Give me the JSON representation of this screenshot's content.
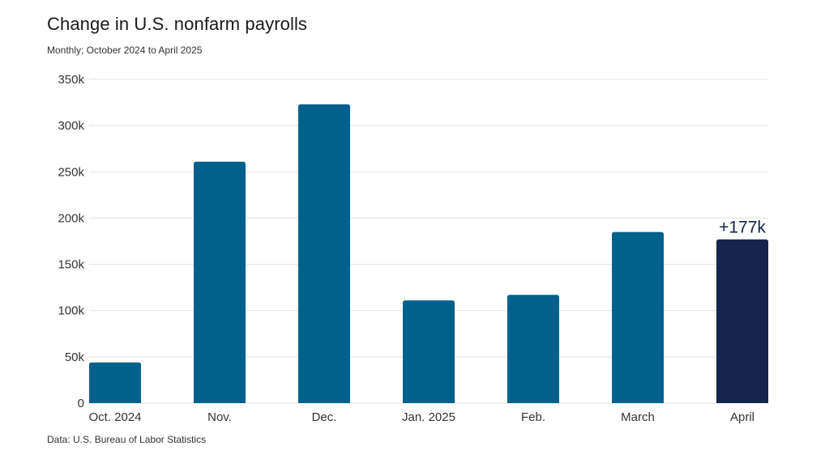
{
  "chart_data": {
    "type": "bar",
    "title": "Change in U.S. nonfarm payrolls",
    "subtitle": "Monthly; October 2024 to April 2025",
    "source": "Data: U.S. Bureau of Labor Statistics",
    "categories": [
      "Oct. 2024",
      "Nov.",
      "Dec.",
      "Jan. 2025",
      "Feb.",
      "March",
      "April"
    ],
    "values": [
      44000,
      261000,
      323000,
      111000,
      117000,
      185000,
      177000
    ],
    "highlight_index": 6,
    "annotation": {
      "category": "April",
      "text": "+177k"
    },
    "ylim": [
      0,
      350000
    ],
    "yticks": [
      0,
      50000,
      100000,
      150000,
      200000,
      250000,
      300000,
      350000
    ],
    "ytick_labels": [
      "0",
      "50k",
      "100k",
      "150k",
      "200k",
      "250k",
      "300k",
      "350k"
    ],
    "xlabel": "",
    "ylabel": "",
    "grid": true,
    "colors": {
      "bar": "#02618c",
      "highlight": "#13254a",
      "grid": "#e3e3e3"
    }
  }
}
